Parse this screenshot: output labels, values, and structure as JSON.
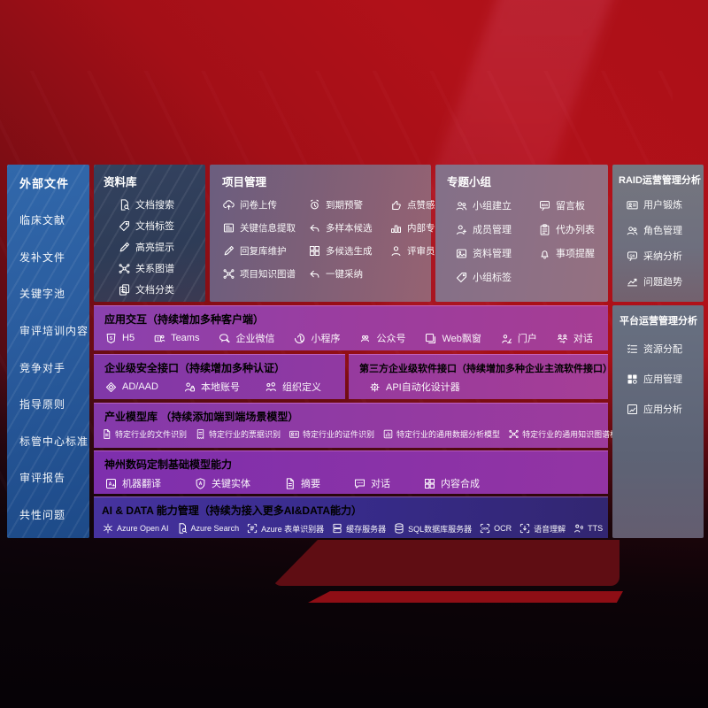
{
  "palette": {
    "background_red": "#b01118",
    "sidebar_blue": "#2a5c9e",
    "library_navy": "#2e3c57",
    "mauve_panel": "#7d5f77",
    "slate_panel": "#6e6f7e",
    "purple_row": "#8a41ae",
    "indigo_row": "#372b8a"
  },
  "sidebar": {
    "title": "外部文件",
    "items": [
      {
        "label": "临床文献"
      },
      {
        "label": "发补文件"
      },
      {
        "label": "关键字池"
      },
      {
        "label": "审评培训内容"
      },
      {
        "label": "竞争对手"
      },
      {
        "label": "指导原则"
      },
      {
        "label": "标管中心标准"
      },
      {
        "label": "审评报告"
      },
      {
        "label": "共性问题"
      }
    ]
  },
  "library": {
    "title": "资料库",
    "items": [
      {
        "label": "文档搜索",
        "icon": "doc-search-icon"
      },
      {
        "label": "文档标签",
        "icon": "tag-icon"
      },
      {
        "label": "高亮提示",
        "icon": "highlight-icon"
      },
      {
        "label": "关系图谱",
        "icon": "graph-icon"
      },
      {
        "label": "文档分类",
        "icon": "doc-copy-icon"
      }
    ]
  },
  "project": {
    "title": "项目管理",
    "items": [
      {
        "label": "问卷上传",
        "icon": "cloud-upload-icon"
      },
      {
        "label": "到期预警",
        "icon": "alarm-icon"
      },
      {
        "label": "点赞感谢",
        "icon": "thumbs-up-icon"
      },
      {
        "label": "关键信息提取",
        "icon": "doc-extract-icon"
      },
      {
        "label": "多样本候选",
        "icon": "reply-icon"
      },
      {
        "label": "内部专家排名",
        "icon": "ranking-icon"
      },
      {
        "label": "回复库维护",
        "icon": "pencil-icon"
      },
      {
        "label": "多候选生成",
        "icon": "puzzle-icon"
      },
      {
        "label": "评审员画像",
        "icon": "person-icon"
      },
      {
        "label": "项目知识图谱",
        "icon": "graph-icon"
      },
      {
        "label": "一键采纳",
        "icon": "adopt-arrow-icon"
      }
    ]
  },
  "groups": {
    "title": "专题小组",
    "items": [
      {
        "label": "小组建立",
        "icon": "people-icon"
      },
      {
        "label": "留言板",
        "icon": "bbs-icon"
      },
      {
        "label": "成员管理",
        "icon": "person-add-icon"
      },
      {
        "label": "代办列表",
        "icon": "clipboard-icon"
      },
      {
        "label": "资料管理",
        "icon": "image-icon"
      },
      {
        "label": "事项提醒",
        "icon": "bell-icon"
      },
      {
        "label": "小组标签",
        "icon": "tag-icon"
      }
    ]
  },
  "raid": {
    "title": "RAID运营管理分析",
    "items": [
      {
        "label": "用户锻炼",
        "icon": "id-card-icon"
      },
      {
        "label": "角色管理",
        "icon": "people-icon"
      },
      {
        "label": "采纳分析",
        "icon": "chat-qa-icon"
      },
      {
        "label": "问题趋势",
        "icon": "trend-icon"
      }
    ]
  },
  "interaction": {
    "title": "应用交互（持续增加多种客户端）",
    "items": [
      {
        "label": "H5",
        "icon": "h5-icon"
      },
      {
        "label": "Teams",
        "icon": "teams-icon"
      },
      {
        "label": "企业微信",
        "icon": "wechat-work-icon"
      },
      {
        "label": "小程序",
        "icon": "miniprogram-icon"
      },
      {
        "label": "公众号",
        "icon": "official-account-icon"
      },
      {
        "label": "Web飘窗",
        "icon": "web-window-icon"
      },
      {
        "label": "门户",
        "icon": "portal-icon"
      },
      {
        "label": "对话",
        "icon": "conversation-icon"
      }
    ]
  },
  "security": {
    "title": "企业级安全接口（持续增加多种认证）",
    "items": [
      {
        "label": "AD/AAD",
        "icon": "ad-icon"
      },
      {
        "label": "本地账号",
        "icon": "local-account-icon"
      },
      {
        "label": "组织定义",
        "icon": "org-icon"
      }
    ]
  },
  "thirdparty": {
    "title": "第三方企业级软件接口（持续增加多种企业主流软件接口）",
    "items": [
      {
        "label": "API自动化设计器",
        "icon": "api-gear-icon"
      }
    ]
  },
  "industry": {
    "title": "产业模型库 （持续添加端到端场景模型）",
    "items": [
      {
        "label": "特定行业的文件识别",
        "icon": "doc-icon"
      },
      {
        "label": "特定行业的票据识别",
        "icon": "receipt-icon"
      },
      {
        "label": "特定行业的证件识别",
        "icon": "id-card-icon"
      },
      {
        "label": "特定行业的通用数据分析模型",
        "icon": "chart-box-icon"
      },
      {
        "label": "特定行业的通用知识图谱模型",
        "icon": "graph-icon"
      }
    ]
  },
  "foundation": {
    "title": "神州数码定制基础模型能力",
    "items": [
      {
        "label": "机器翻译",
        "icon": "translate-icon"
      },
      {
        "label": "关键实体",
        "icon": "shield-a-icon"
      },
      {
        "label": "摘要",
        "icon": "doc-icon"
      },
      {
        "label": "对话",
        "icon": "chat-icon"
      },
      {
        "label": "内容合成",
        "icon": "puzzle-icon"
      }
    ]
  },
  "aidata": {
    "title": "AI & DATA 能力管理（持续为接入更多AI&DATA能力）",
    "items": [
      {
        "label": "Azure Open AI",
        "icon": "openai-icon"
      },
      {
        "label": "Azure Search",
        "icon": "azure-search-icon"
      },
      {
        "label": "Azure 表单识别器",
        "icon": "form-recognizer-icon"
      },
      {
        "label": "缓存服务器",
        "icon": "cache-server-icon"
      },
      {
        "label": "SQL数据库服务器",
        "icon": "sql-db-icon"
      },
      {
        "label": "OCR",
        "icon": "ocr-icon"
      },
      {
        "label": "语音理解",
        "icon": "speech-icon"
      },
      {
        "label": "TTS",
        "icon": "tts-icon"
      }
    ]
  },
  "platform": {
    "title": "平台运营管理分析",
    "items": [
      {
        "label": "资源分配",
        "icon": "list-icon"
      },
      {
        "label": "应用管理",
        "icon": "grid-icon"
      },
      {
        "label": "应用分析",
        "icon": "app-chart-icon"
      }
    ]
  }
}
